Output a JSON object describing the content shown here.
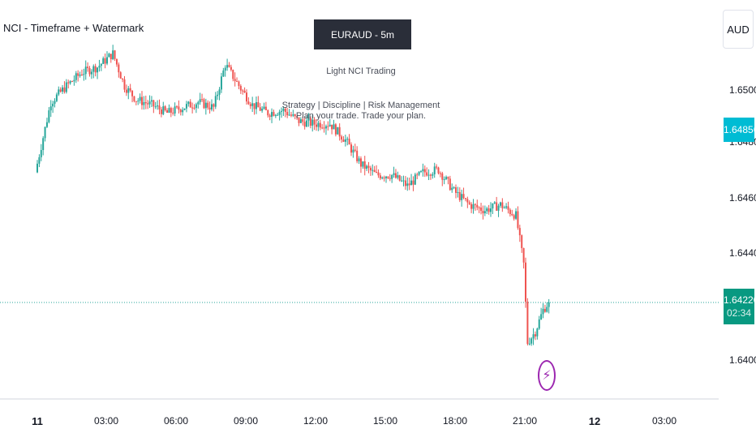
{
  "indicator_title": "NCI - Timeframe + Watermark",
  "watermark": {
    "symbol_box": "EURAUD - 5m",
    "brand": "Light NCI Trading",
    "tagline": "Strategy | Discipline | Risk Management",
    "motto": "Plan your trade. Trade your plan."
  },
  "currency_button": "AUD",
  "colors": {
    "up": "#26a69a",
    "down": "#ef5350",
    "price_tag": "#00bcd4",
    "last_tag": "#089981",
    "event": "#9c27b0"
  },
  "icons": {
    "event": "lightning-icon"
  },
  "chart_data": {
    "type": "candlestick",
    "symbol": "EURAUD",
    "interval": "5m",
    "ylim": [
      1.639,
      1.6522
    ],
    "y_ticks": [
      "1.65000",
      "1.64800",
      "1.64600",
      "1.64400",
      "1.64000"
    ],
    "x_ticks": [
      "11",
      "03:00",
      "06:00",
      "09:00",
      "12:00",
      "15:00",
      "18:00",
      "21:00",
      "12",
      "03:00"
    ],
    "crosshair_price": "1.64856",
    "last_price": "1.64220",
    "countdown": "02:34",
    "price_path": [
      [
        "00:00",
        1.6471
      ],
      [
        "00:40",
        1.6497
      ],
      [
        "01:20",
        1.6503
      ],
      [
        "02:00",
        1.6508
      ],
      [
        "02:40",
        1.651
      ],
      [
        "03:20",
        1.6515
      ],
      [
        "03:50",
        1.6503
      ],
      [
        "04:20",
        1.6498
      ],
      [
        "05:00",
        1.6496
      ],
      [
        "05:40",
        1.6493
      ],
      [
        "06:20",
        1.6495
      ],
      [
        "07:00",
        1.6497
      ],
      [
        "07:40",
        1.6495
      ],
      [
        "08:10",
        1.6511
      ],
      [
        "08:50",
        1.6502
      ],
      [
        "09:20",
        1.6496
      ],
      [
        "10:00",
        1.6493
      ],
      [
        "10:40",
        1.6494
      ],
      [
        "11:20",
        1.649
      ],
      [
        "12:00",
        1.6489
      ],
      [
        "12:40",
        1.6489
      ],
      [
        "13:20",
        1.6483
      ],
      [
        "14:00",
        1.6474
      ],
      [
        "14:40",
        1.647
      ],
      [
        "15:20",
        1.647
      ],
      [
        "16:00",
        1.6466
      ],
      [
        "16:40",
        1.6471
      ],
      [
        "17:20",
        1.6472
      ],
      [
        "18:00",
        1.6464
      ],
      [
        "18:40",
        1.6459
      ],
      [
        "19:20",
        1.6457
      ],
      [
        "20:00",
        1.6459
      ],
      [
        "20:40",
        1.6455
      ],
      [
        "21:00",
        1.6437
      ],
      [
        "21:10",
        1.6408
      ],
      [
        "21:30",
        1.6412
      ],
      [
        "21:50",
        1.642
      ],
      [
        "22:00",
        1.6422
      ]
    ]
  }
}
